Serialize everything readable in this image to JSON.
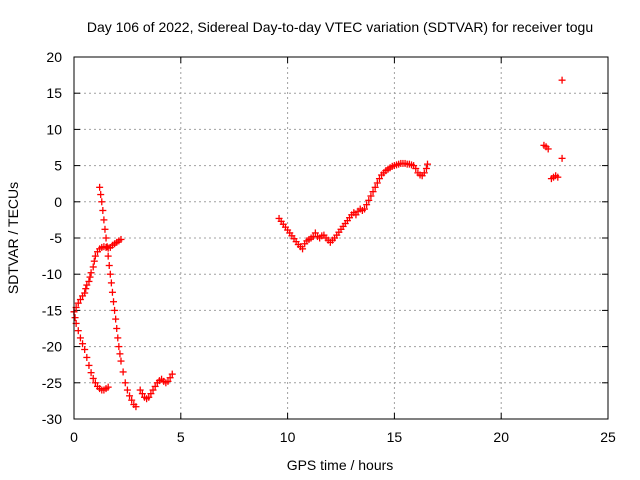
{
  "chart_data": {
    "type": "scatter",
    "title": "Day 106 of 2022, Sidereal Day-to-day VTEC variation (SDTVAR) for receiver togu",
    "xlabel": "GPS time / hours",
    "ylabel": "SDTVAR / TECUs",
    "xlim": [
      0,
      25
    ],
    "ylim": [
      -30,
      20
    ],
    "xticks": [
      "0",
      "5",
      "10",
      "15",
      "20",
      "25"
    ],
    "yticks": [
      "-30",
      "-25",
      "-20",
      "-15",
      "-10",
      "-5",
      "0",
      "5",
      "10",
      "15",
      "20"
    ],
    "grid": true,
    "marker": "plus",
    "color": "#ff0000",
    "segments": [
      [
        [
          0.0,
          -15.2
        ],
        [
          0.05,
          -16.0
        ],
        [
          0.1,
          -16.8
        ],
        [
          0.2,
          -17.8
        ],
        [
          0.3,
          -18.8
        ],
        [
          0.4,
          -19.6
        ],
        [
          0.5,
          -20.4
        ],
        [
          0.6,
          -21.5
        ],
        [
          0.7,
          -22.6
        ],
        [
          0.8,
          -23.6
        ],
        [
          0.9,
          -24.4
        ],
        [
          1.0,
          -25.0
        ],
        [
          1.1,
          -25.5
        ],
        [
          1.2,
          -25.8
        ],
        [
          1.3,
          -26.0
        ],
        [
          1.4,
          -26.0
        ],
        [
          1.5,
          -25.8
        ],
        [
          1.6,
          -25.6
        ]
      ],
      [
        [
          0.0,
          -15.2
        ],
        [
          0.1,
          -14.6
        ],
        [
          0.2,
          -14.0
        ],
        [
          0.3,
          -13.5
        ],
        [
          0.4,
          -13.0
        ],
        [
          0.5,
          -12.6
        ],
        [
          0.55,
          -12.0
        ],
        [
          0.6,
          -11.5
        ],
        [
          0.7,
          -11.0
        ],
        [
          0.75,
          -10.4
        ],
        [
          0.8,
          -9.8
        ],
        [
          0.9,
          -9.0
        ],
        [
          0.95,
          -8.2
        ],
        [
          1.0,
          -7.5
        ],
        [
          1.1,
          -6.9
        ],
        [
          1.2,
          -6.5
        ],
        [
          1.3,
          -6.3
        ],
        [
          1.4,
          -6.2
        ],
        [
          1.5,
          -6.3
        ],
        [
          1.6,
          -6.4
        ],
        [
          1.7,
          -6.3
        ],
        [
          1.8,
          -6.0
        ],
        [
          1.9,
          -5.8
        ],
        [
          2.0,
          -5.6
        ],
        [
          2.1,
          -5.4
        ],
        [
          2.2,
          -5.2
        ]
      ],
      [
        [
          1.2,
          2.0
        ],
        [
          1.25,
          1.0
        ],
        [
          1.3,
          0.0
        ],
        [
          1.35,
          -1.2
        ],
        [
          1.4,
          -2.5
        ],
        [
          1.45,
          -3.8
        ],
        [
          1.5,
          -5.0
        ],
        [
          1.55,
          -6.2
        ],
        [
          1.6,
          -7.5
        ],
        [
          1.65,
          -8.8
        ],
        [
          1.7,
          -10.0
        ],
        [
          1.75,
          -11.2
        ],
        [
          1.8,
          -12.5
        ],
        [
          1.85,
          -13.8
        ],
        [
          1.9,
          -15.0
        ],
        [
          1.95,
          -16.2
        ],
        [
          2.0,
          -17.5
        ],
        [
          2.05,
          -18.8
        ],
        [
          2.1,
          -20.0
        ],
        [
          2.15,
          -21.0
        ],
        [
          2.2,
          -22.0
        ],
        [
          2.3,
          -23.5
        ],
        [
          2.4,
          -25.0
        ],
        [
          2.5,
          -26.0
        ],
        [
          2.6,
          -26.8
        ],
        [
          2.7,
          -27.4
        ],
        [
          2.8,
          -28.0
        ],
        [
          2.9,
          -28.3
        ]
      ],
      [
        [
          3.1,
          -26.0
        ],
        [
          3.2,
          -26.5
        ],
        [
          3.3,
          -27.0
        ],
        [
          3.4,
          -27.2
        ],
        [
          3.5,
          -27.0
        ],
        [
          3.6,
          -26.5
        ],
        [
          3.7,
          -26.0
        ],
        [
          3.8,
          -25.5
        ],
        [
          3.9,
          -25.0
        ],
        [
          4.0,
          -24.7
        ],
        [
          4.1,
          -24.5
        ],
        [
          4.2,
          -24.8
        ],
        [
          4.3,
          -25.0
        ],
        [
          4.4,
          -24.8
        ],
        [
          4.5,
          -24.3
        ],
        [
          4.6,
          -23.8
        ]
      ],
      [
        [
          9.6,
          -2.3
        ],
        [
          9.7,
          -2.7
        ],
        [
          9.8,
          -3.1
        ],
        [
          9.9,
          -3.5
        ],
        [
          10.0,
          -3.9
        ],
        [
          10.1,
          -4.3
        ],
        [
          10.2,
          -4.7
        ],
        [
          10.3,
          -5.1
        ],
        [
          10.4,
          -5.5
        ],
        [
          10.5,
          -5.9
        ],
        [
          10.6,
          -6.2
        ],
        [
          10.7,
          -6.5
        ],
        [
          10.8,
          -5.8
        ],
        [
          10.9,
          -5.4
        ],
        [
          11.0,
          -5.2
        ],
        [
          11.1,
          -5.0
        ],
        [
          11.2,
          -4.8
        ],
        [
          11.3,
          -4.3
        ],
        [
          11.4,
          -4.8
        ],
        [
          11.5,
          -5.0
        ],
        [
          11.6,
          -4.7
        ],
        [
          11.7,
          -4.6
        ],
        [
          11.8,
          -5.0
        ],
        [
          11.9,
          -5.3
        ],
        [
          12.0,
          -5.6
        ],
        [
          12.1,
          -5.3
        ],
        [
          12.2,
          -5.0
        ],
        [
          12.3,
          -4.6
        ],
        [
          12.4,
          -4.2
        ],
        [
          12.5,
          -3.8
        ],
        [
          12.6,
          -3.4
        ],
        [
          12.7,
          -3.0
        ],
        [
          12.8,
          -2.6
        ],
        [
          12.9,
          -2.2
        ],
        [
          13.0,
          -1.8
        ],
        [
          13.1,
          -1.5
        ],
        [
          13.2,
          -1.8
        ],
        [
          13.3,
          -1.3
        ],
        [
          13.4,
          -1.0
        ],
        [
          13.5,
          -1.2
        ],
        [
          13.6,
          -1.0
        ],
        [
          13.7,
          -0.4
        ],
        [
          13.8,
          0.2
        ],
        [
          13.9,
          0.8
        ],
        [
          14.0,
          1.4
        ],
        [
          14.1,
          2.0
        ],
        [
          14.2,
          2.6
        ],
        [
          14.3,
          3.2
        ],
        [
          14.4,
          3.7
        ],
        [
          14.5,
          4.0
        ],
        [
          14.6,
          4.3
        ],
        [
          14.7,
          4.5
        ],
        [
          14.8,
          4.7
        ],
        [
          14.9,
          4.9
        ],
        [
          15.0,
          5.0
        ],
        [
          15.1,
          5.1
        ],
        [
          15.2,
          5.2
        ],
        [
          15.3,
          5.3
        ],
        [
          15.4,
          5.3
        ],
        [
          15.5,
          5.3
        ],
        [
          15.6,
          5.2
        ],
        [
          15.7,
          5.2
        ],
        [
          15.8,
          5.1
        ],
        [
          15.9,
          5.0
        ],
        [
          16.0,
          4.6
        ],
        [
          16.1,
          4.0
        ],
        [
          16.2,
          3.7
        ],
        [
          16.3,
          3.6
        ],
        [
          16.4,
          4.0
        ],
        [
          16.5,
          4.6
        ],
        [
          16.55,
          5.2
        ]
      ],
      [
        [
          22.0,
          7.8
        ],
        [
          22.1,
          7.6
        ],
        [
          22.2,
          7.3
        ]
      ],
      [
        [
          22.35,
          3.2
        ],
        [
          22.45,
          3.4
        ],
        [
          22.55,
          3.6
        ],
        [
          22.65,
          3.4
        ]
      ],
      [
        [
          22.85,
          6.0
        ]
      ],
      [
        [
          22.85,
          16.8
        ]
      ]
    ]
  }
}
